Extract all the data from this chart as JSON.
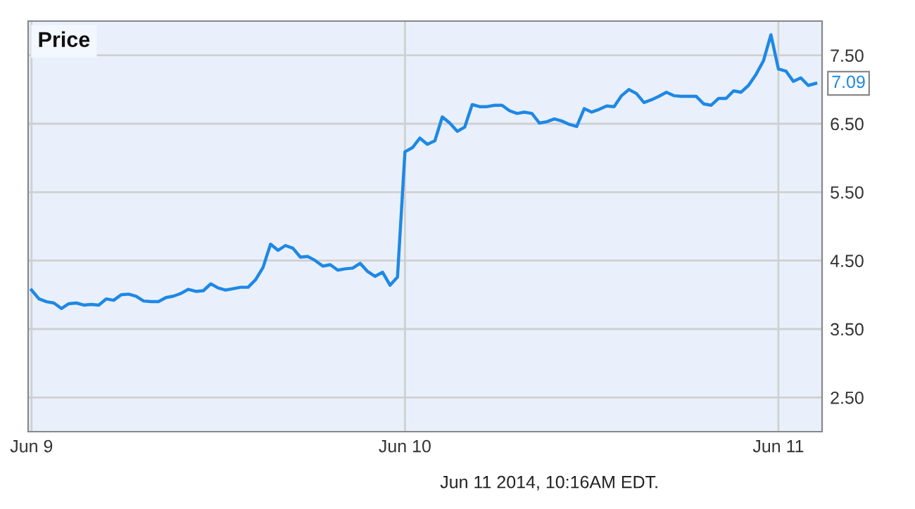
{
  "chart_data": {
    "type": "line",
    "title": "Price",
    "annotations": [
      "Jun 11 2014, 10:16AM EDT."
    ],
    "categories": [
      "Jun 9",
      null,
      null,
      null,
      null,
      null,
      null,
      null,
      null,
      null,
      null,
      null,
      null,
      null,
      null,
      null,
      null,
      null,
      null,
      null,
      null,
      null,
      null,
      null,
      null,
      null,
      null,
      null,
      null,
      null,
      null,
      null,
      null,
      null,
      null,
      null,
      null,
      null,
      null,
      null,
      null,
      null,
      null,
      null,
      null,
      null,
      null,
      null,
      null,
      null,
      "Jun 10",
      null,
      null,
      null,
      null,
      null,
      null,
      null,
      null,
      null,
      null,
      null,
      null,
      null,
      null,
      null,
      null,
      null,
      null,
      null,
      null,
      null,
      null,
      null,
      null,
      null,
      null,
      null,
      null,
      null,
      null,
      null,
      null,
      null,
      null,
      null,
      null,
      null,
      null,
      null,
      null,
      null,
      null,
      null,
      null,
      null,
      null,
      null,
      null,
      null,
      "Jun 11",
      null,
      null,
      null,
      null,
      null
    ],
    "series": [
      {
        "color": "#1e88e5",
        "values": [
          4.07,
          3.94,
          3.9,
          3.88,
          3.8,
          3.87,
          3.88,
          3.85,
          3.86,
          3.85,
          3.94,
          3.92,
          4.0,
          4.01,
          3.98,
          3.91,
          3.9,
          3.9,
          3.96,
          3.98,
          4.02,
          4.08,
          4.05,
          4.06,
          4.16,
          4.1,
          4.07,
          4.09,
          4.11,
          4.11,
          4.22,
          4.4,
          4.74,
          4.65,
          4.72,
          4.68,
          4.55,
          4.56,
          4.5,
          4.42,
          4.44,
          4.36,
          4.38,
          4.39,
          4.46,
          4.34,
          4.27,
          4.33,
          4.14,
          4.26,
          6.09,
          6.15,
          6.29,
          6.2,
          6.25,
          6.6,
          6.51,
          6.39,
          6.45,
          6.78,
          6.75,
          6.75,
          6.77,
          6.77,
          6.69,
          6.65,
          6.67,
          6.65,
          6.51,
          6.53,
          6.57,
          6.54,
          6.49,
          6.46,
          6.72,
          6.67,
          6.71,
          6.76,
          6.75,
          6.91,
          7.0,
          6.94,
          6.81,
          6.85,
          6.9,
          6.96,
          6.91,
          6.9,
          6.9,
          6.9,
          6.79,
          6.77,
          6.87,
          6.87,
          6.98,
          6.96,
          7.06,
          7.22,
          7.42,
          7.8,
          7.3,
          7.27,
          7.12,
          7.17,
          7.06,
          7.09
        ],
        "value_labels": [
          null,
          null,
          null,
          null,
          null,
          null,
          null,
          null,
          null,
          null,
          null,
          null,
          null,
          null,
          null,
          null,
          null,
          null,
          null,
          null,
          null,
          null,
          null,
          null,
          null,
          null,
          null,
          null,
          null,
          null,
          null,
          null,
          null,
          null,
          null,
          null,
          null,
          null,
          null,
          null,
          null,
          null,
          null,
          null,
          null,
          null,
          null,
          null,
          null,
          null,
          null,
          null,
          null,
          null,
          null,
          null,
          null,
          null,
          null,
          null,
          null,
          null,
          null,
          null,
          null,
          null,
          null,
          null,
          null,
          null,
          null,
          null,
          null,
          null,
          null,
          null,
          null,
          null,
          null,
          null,
          null,
          null,
          null,
          null,
          null,
          null,
          null,
          null,
          null,
          null,
          null,
          null,
          null,
          null,
          null,
          null,
          null,
          null,
          null,
          null,
          null,
          null,
          null,
          null,
          null,
          "7.09"
        ]
      }
    ],
    "ylim": [
      2.0,
      8.0
    ],
    "yticks": [
      {
        "value": 2.5,
        "label": "2.50"
      },
      {
        "value": 3.5,
        "label": "3.50"
      },
      {
        "value": 4.5,
        "label": "4.50"
      },
      {
        "value": 5.5,
        "label": "5.50"
      },
      {
        "value": 6.5,
        "label": "6.50"
      },
      {
        "value": 7.5,
        "label": "7.50"
      }
    ],
    "grid": true,
    "marker": "none",
    "line_style": "solid"
  }
}
